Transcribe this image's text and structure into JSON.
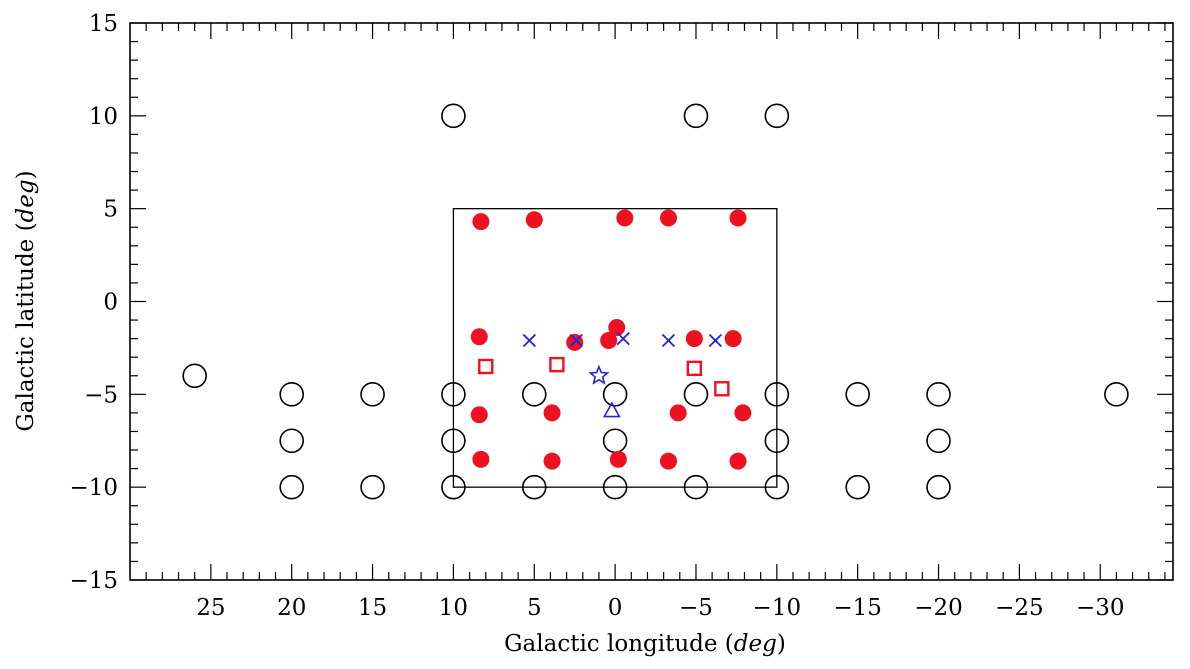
{
  "chart_data": {
    "type": "scatter",
    "xlabel": "Galactic longitude",
    "xlabel_unit": "deg",
    "ylabel": "Galactic latitude",
    "ylabel_unit": "deg",
    "xlim": [
      30,
      -34.5
    ],
    "ylim": [
      -15,
      15
    ],
    "x_reversed": true,
    "xticks": [
      25,
      20,
      15,
      10,
      5,
      0,
      -5,
      -10,
      -15,
      -20,
      -25,
      -30
    ],
    "yticks": [
      -15,
      -10,
      -5,
      0,
      5,
      10,
      15
    ],
    "grid": false,
    "legend": "none",
    "box_region": {
      "l_min": -10,
      "l_max": 10,
      "b_min": -10,
      "b_max": 5
    },
    "series": [
      {
        "marker": "open-circle",
        "color": "#000000",
        "points": [
          [
            10,
            10
          ],
          [
            -5,
            10
          ],
          [
            -10,
            10
          ],
          [
            26,
            -4
          ],
          [
            20,
            -5
          ],
          [
            15,
            -5
          ],
          [
            10,
            -5
          ],
          [
            5,
            -5
          ],
          [
            0,
            -5
          ],
          [
            -5,
            -5
          ],
          [
            -10,
            -5
          ],
          [
            -15,
            -5
          ],
          [
            -20,
            -5
          ],
          [
            -31,
            -5
          ],
          [
            20,
            -7.5
          ],
          [
            10,
            -7.5
          ],
          [
            0,
            -7.5
          ],
          [
            -10,
            -7.5
          ],
          [
            -20,
            -7.5
          ],
          [
            20,
            -10
          ],
          [
            15,
            -10
          ],
          [
            10,
            -10
          ],
          [
            5,
            -10
          ],
          [
            0,
            -10
          ],
          [
            -5,
            -10
          ],
          [
            -10,
            -10
          ],
          [
            -15,
            -10
          ],
          [
            -20,
            -10
          ]
        ]
      },
      {
        "marker": "filled-circle",
        "color": "#ee1122",
        "points": [
          [
            8.3,
            4.3
          ],
          [
            5,
            4.4
          ],
          [
            -0.6,
            4.5
          ],
          [
            -3.3,
            4.5
          ],
          [
            -7.6,
            4.5
          ],
          [
            8.4,
            -1.9
          ],
          [
            -0.1,
            -1.4
          ],
          [
            0.4,
            -2.1
          ],
          [
            2.5,
            -2.2
          ],
          [
            -4.9,
            -2.0
          ],
          [
            -7.3,
            -2.0
          ],
          [
            8.4,
            -6.1
          ],
          [
            3.9,
            -6.0
          ],
          [
            -3.9,
            -6.0
          ],
          [
            -7.9,
            -6.0
          ],
          [
            8.3,
            -8.5
          ],
          [
            3.9,
            -8.6
          ],
          [
            -0.2,
            -8.5
          ],
          [
            -3.3,
            -8.6
          ],
          [
            -7.6,
            -8.6
          ]
        ]
      },
      {
        "marker": "open-square",
        "color": "#ee1122",
        "points": [
          [
            8,
            -3.5
          ],
          [
            3.6,
            -3.4
          ],
          [
            -4.9,
            -3.6
          ],
          [
            -6.6,
            -4.7
          ]
        ]
      },
      {
        "marker": "cross",
        "color": "#2222dd",
        "points": [
          [
            5.3,
            -2.1
          ],
          [
            2.4,
            -2.1
          ],
          [
            -0.5,
            -2.0
          ],
          [
            -3.3,
            -2.1
          ],
          [
            -6.2,
            -2.1
          ]
        ]
      },
      {
        "marker": "open-star",
        "color": "#2222dd",
        "points": [
          [
            1,
            -4
          ]
        ]
      },
      {
        "marker": "open-triangle",
        "color": "#2222dd",
        "points": [
          [
            0.2,
            -5.9
          ]
        ]
      }
    ]
  }
}
